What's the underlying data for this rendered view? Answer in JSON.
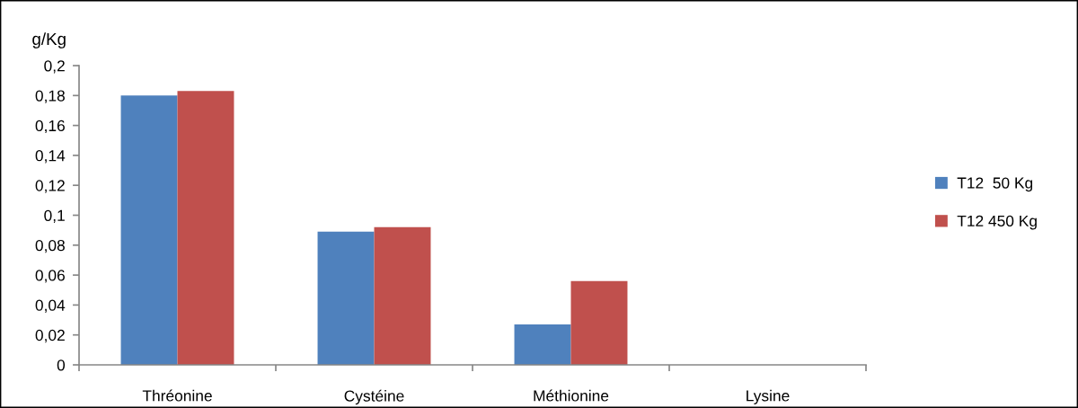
{
  "chart_data": {
    "type": "bar",
    "ylabel": "g/Kg",
    "categories": [
      "Thréonine",
      "Cystéine",
      "Méthionine",
      "Lysine"
    ],
    "series": [
      {
        "name": "T12  50 Kg",
        "color": "#4f81bd",
        "values": [
          0.18,
          0.089,
          0.027,
          null
        ]
      },
      {
        "name": "T12 450 Kg",
        "color": "#c0504d",
        "values": [
          0.183,
          0.092,
          0.056,
          null
        ]
      }
    ],
    "ylim": [
      0,
      0.2
    ],
    "yticks": [
      0,
      {
        "value": 0.02,
        "label": "0,02"
      },
      {
        "value": 0.04,
        "label": "0,04"
      },
      {
        "value": 0.06,
        "label": "0,06"
      },
      {
        "value": 0.08,
        "label": "0,08"
      },
      {
        "value": 0.1,
        "label": "0,1"
      },
      {
        "value": 0.12,
        "label": "0,12"
      },
      {
        "value": 0.14,
        "label": "0,14"
      },
      {
        "value": 0.16,
        "label": "0,16"
      },
      {
        "value": 0.18,
        "label": "0,18"
      },
      {
        "value": 0.2,
        "label": "0,2"
      }
    ],
    "legend": "right"
  }
}
